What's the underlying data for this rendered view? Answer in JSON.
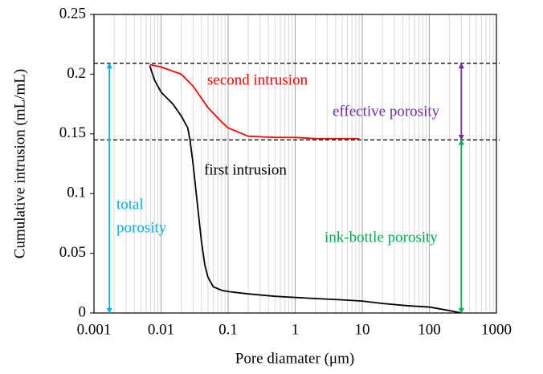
{
  "chart_data": {
    "type": "line",
    "xscale": "log",
    "grid": true,
    "xlabel": "Pore diamater (μm)",
    "ylabel": "Cumulative intrusion (mL/mL)",
    "xlim": [
      0.001,
      1000
    ],
    "xticks": [
      0.001,
      0.01,
      0.1,
      1,
      10,
      100,
      1000
    ],
    "ylim": [
      0,
      0.25
    ],
    "yticks": [
      0,
      0.05,
      0.1,
      0.15,
      0.2,
      0.25
    ],
    "series": [
      {
        "name": "first intrusion",
        "color": "#000000",
        "x": [
          0.0068,
          0.008,
          0.01,
          0.015,
          0.02,
          0.025,
          0.027,
          0.03,
          0.035,
          0.04,
          0.045,
          0.05,
          0.06,
          0.08,
          0.1,
          0.2,
          0.5,
          1,
          5,
          10,
          20,
          50,
          100,
          200,
          300
        ],
        "values": [
          0.207,
          0.195,
          0.185,
          0.175,
          0.165,
          0.155,
          0.145,
          0.125,
          0.09,
          0.06,
          0.04,
          0.03,
          0.022,
          0.019,
          0.018,
          0.016,
          0.014,
          0.013,
          0.011,
          0.01,
          0.008,
          0.006,
          0.005,
          0.002,
          0
        ]
      },
      {
        "name": "second intrusion",
        "color": "#ff0000",
        "x": [
          0.0068,
          0.01,
          0.02,
          0.03,
          0.05,
          0.08,
          0.1,
          0.2,
          0.5,
          1,
          2,
          9
        ],
        "values": [
          0.208,
          0.206,
          0.2,
          0.19,
          0.172,
          0.16,
          0.155,
          0.148,
          0.147,
          0.147,
          0.146,
          0.146
        ]
      }
    ],
    "hlines": [
      0.209,
      0.145
    ],
    "arrows": [
      {
        "x": 0.0017,
        "y": [
          0,
          0.209
        ],
        "color": "#00b0f0"
      },
      {
        "x": 300,
        "y": [
          0.145,
          0.209
        ],
        "color": "#7030a0"
      },
      {
        "x": 300,
        "y": [
          0,
          0.145
        ],
        "color": "#00b050"
      }
    ],
    "annotations": [
      {
        "text": "total",
        "color": "#00b0f0"
      },
      {
        "text": "porosity",
        "color": "#00b0f0"
      },
      {
        "text": "effective porosity",
        "color": "#7030a0"
      },
      {
        "text": "ink-bottle porosity",
        "color": "#00b050"
      }
    ]
  }
}
